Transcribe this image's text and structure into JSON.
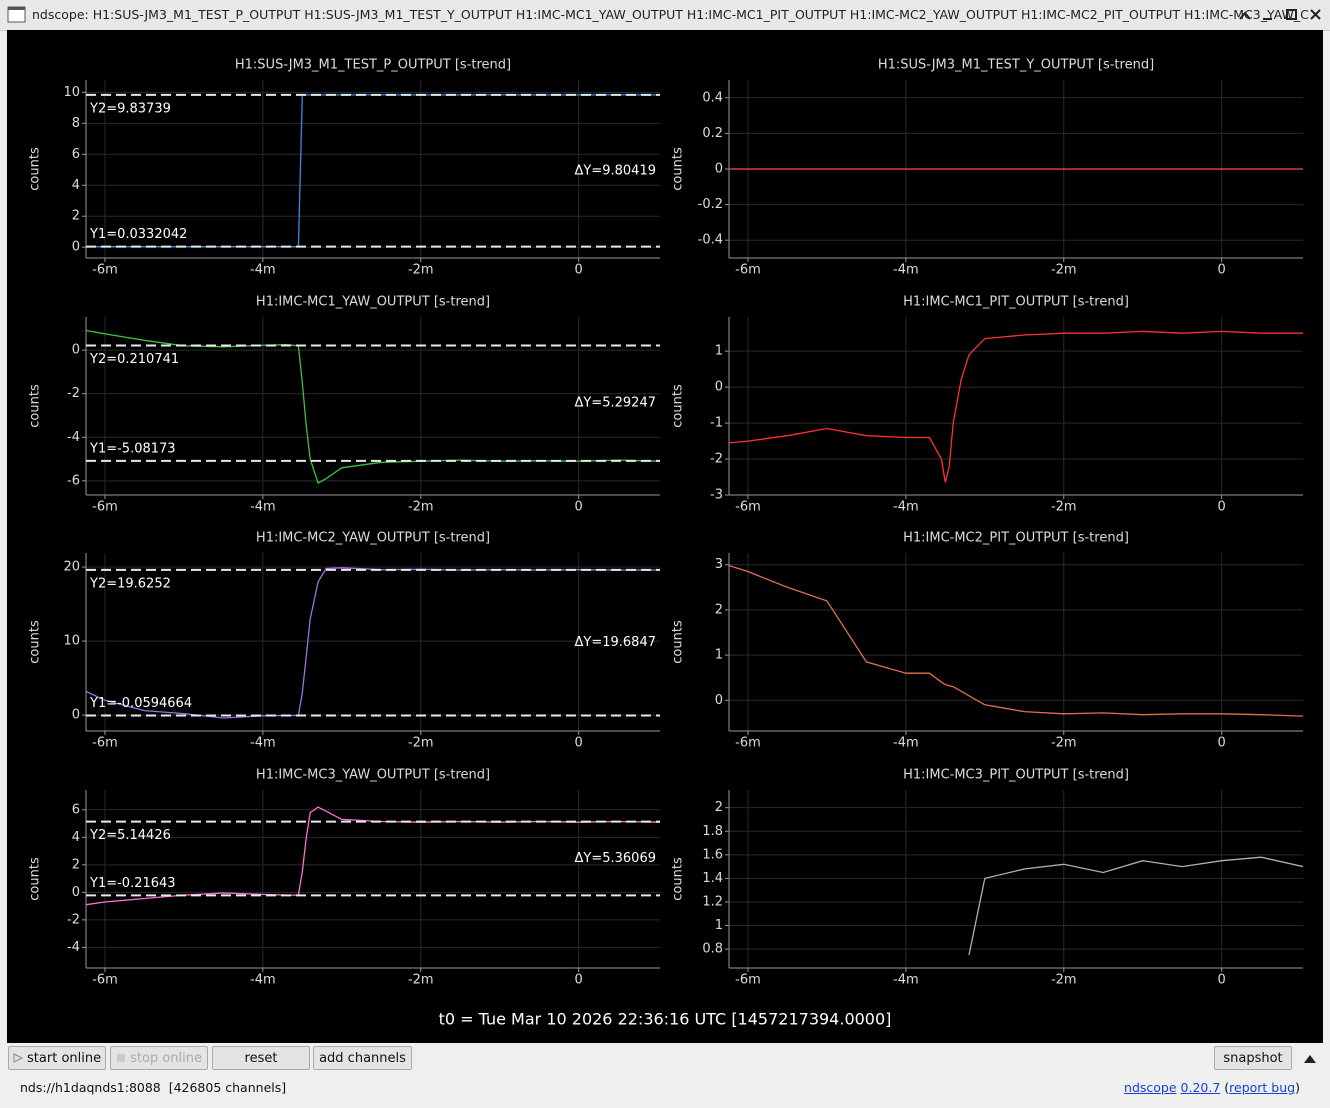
{
  "window": {
    "title": "ndscope: H1:SUS-JM3_M1_TEST_P_OUTPUT H1:SUS-JM3_M1_TEST_Y_OUTPUT H1:IMC-MC1_YAW_OUTPUT H1:IMC-MC1_PIT_OUTPUT H1:IMC-MC2_YAW_OUTPUT H1:IMC-MC2_PIT_OUTPUT H1:IMC-MC3_YAW_C"
  },
  "chart_data": [
    {
      "type": "line",
      "title": "H1:SUS-JM3_M1_TEST_P_OUTPUT [s-trend]",
      "ylabel": "counts",
      "grid": true,
      "xlim": [
        -6.24,
        1.03
      ],
      "xticks": [
        {
          "value": -6,
          "label": "-6m"
        },
        {
          "value": -4,
          "label": "-4m"
        },
        {
          "value": -2,
          "label": "-2m"
        },
        0
      ],
      "ylim": [
        -0.7,
        10.8
      ],
      "yticks": [
        0,
        2,
        4,
        6,
        8,
        10
      ],
      "x": [
        -6.24,
        -6,
        -5.5,
        -5,
        -4.5,
        -4,
        -3.7,
        -3.55,
        -3.5,
        -3.45,
        -3.4,
        -3.3,
        -3.2,
        -3,
        -2.5,
        -2,
        -1.5,
        -1,
        -0.5,
        0,
        0.5,
        1.03
      ],
      "series": [
        {
          "color": "#3a8dde",
          "values": [
            0.03,
            0.03,
            0.03,
            0.03,
            0.03,
            0.03,
            0.03,
            0.03,
            9.84,
            9.84,
            9.84,
            9.84,
            9.84,
            9.84,
            9.84,
            9.84,
            9.84,
            9.84,
            9.84,
            9.84,
            9.84,
            9.84
          ]
        }
      ],
      "cursors": {
        "y1": {
          "value": 0.0332042,
          "label": "Y1=0.0332042"
        },
        "y2": {
          "value": 9.83739,
          "label": "Y2=9.83739"
        },
        "dy": {
          "value": 9.80419,
          "label": "ΔY=9.80419"
        }
      }
    },
    {
      "type": "line",
      "title": "H1:SUS-JM3_M1_TEST_Y_OUTPUT [s-trend]",
      "ylabel": "counts",
      "grid": true,
      "xlim": [
        -6.24,
        1.03
      ],
      "xticks": [
        {
          "value": -6,
          "label": "-6m"
        },
        {
          "value": -4,
          "label": "-4m"
        },
        {
          "value": -2,
          "label": "-2m"
        },
        0
      ],
      "ylim": [
        -0.5,
        0.5
      ],
      "yticks": [
        -0.4,
        -0.2,
        0,
        0.2,
        0.4
      ],
      "x": [
        -6.24,
        -6,
        -5.5,
        -5,
        -4.5,
        -4,
        -3.7,
        -3.55,
        -3.5,
        -3.45,
        -3.4,
        -3.3,
        -3.2,
        -3,
        -2.5,
        -2,
        -1.5,
        -1,
        -0.5,
        0,
        0.5,
        1.03
      ],
      "series": [
        {
          "color": "#ff4a4a",
          "values": [
            0,
            0,
            0,
            0,
            0,
            0,
            0,
            0,
            0,
            0,
            0,
            0,
            0,
            0,
            0,
            0,
            0,
            0,
            0,
            0,
            0,
            0
          ]
        }
      ]
    },
    {
      "type": "line",
      "title": "H1:IMC-MC1_YAW_OUTPUT [s-trend]",
      "ylabel": "counts",
      "grid": true,
      "xlim": [
        -6.24,
        1.03
      ],
      "xticks": [
        {
          "value": -6,
          "label": "-6m"
        },
        {
          "value": -4,
          "label": "-4m"
        },
        {
          "value": -2,
          "label": "-2m"
        },
        0
      ],
      "ylim": [
        -6.65,
        1.52
      ],
      "yticks": [
        -6,
        -4,
        -2,
        0
      ],
      "x": [
        -6.24,
        -6,
        -5.5,
        -5,
        -4.5,
        -4,
        -3.7,
        -3.55,
        -3.5,
        -3.45,
        -3.4,
        -3.3,
        -3.2,
        -3,
        -2.5,
        -2,
        -1.5,
        -1,
        -0.5,
        0,
        0.5,
        1.03
      ],
      "series": [
        {
          "color": "#3fbf3f",
          "values": [
            0.9,
            0.75,
            0.45,
            0.2,
            0.15,
            0.22,
            0.25,
            0.2,
            -1.5,
            -3.5,
            -5,
            -6.1,
            -5.9,
            -5.4,
            -5.15,
            -5.1,
            -5.05,
            -5.1,
            -5.08,
            -5.1,
            -5.05,
            -5.1
          ]
        }
      ],
      "cursors": {
        "y1": {
          "value": -5.08173,
          "label": "Y1=-5.08173"
        },
        "y2": {
          "value": 0.210741,
          "label": "Y2=0.210741"
        },
        "dy": {
          "value": 5.29247,
          "label": "ΔY=5.29247"
        }
      }
    },
    {
      "type": "line",
      "title": "H1:IMC-MC1_PIT_OUTPUT [s-trend]",
      "ylabel": "counts",
      "grid": true,
      "xlim": [
        -6.24,
        1.03
      ],
      "xticks": [
        {
          "value": -6,
          "label": "-6m"
        },
        {
          "value": -4,
          "label": "-4m"
        },
        {
          "value": -2,
          "label": "-2m"
        },
        0
      ],
      "ylim": [
        -3,
        1.95
      ],
      "yticks": [
        -3,
        -2,
        -1,
        0,
        1
      ],
      "x": [
        -6.24,
        -6,
        -5.5,
        -5,
        -4.5,
        -4,
        -3.7,
        -3.55,
        -3.5,
        -3.45,
        -3.4,
        -3.3,
        -3.2,
        -3,
        -2.5,
        -2,
        -1.5,
        -1,
        -0.5,
        0,
        0.5,
        1.03
      ],
      "series": [
        {
          "color": "#ff3030",
          "values": [
            -1.55,
            -1.5,
            -1.35,
            -1.15,
            -1.35,
            -1.4,
            -1.4,
            -2.0,
            -2.65,
            -2.2,
            -1.0,
            0.2,
            0.9,
            1.35,
            1.45,
            1.5,
            1.5,
            1.55,
            1.5,
            1.55,
            1.5,
            1.5
          ]
        }
      ]
    },
    {
      "type": "line",
      "title": "H1:IMC-MC2_YAW_OUTPUT [s-trend]",
      "ylabel": "counts",
      "grid": true,
      "xlim": [
        -6.24,
        1.03
      ],
      "xticks": [
        {
          "value": -6,
          "label": "-6m"
        },
        {
          "value": -4,
          "label": "-4m"
        },
        {
          "value": -2,
          "label": "-2m"
        },
        0
      ],
      "ylim": [
        -2.15,
        21.9
      ],
      "yticks": [
        0,
        10,
        20
      ],
      "x": [
        -6.24,
        -6,
        -5.5,
        -5,
        -4.5,
        -4,
        -3.7,
        -3.55,
        -3.5,
        -3.45,
        -3.4,
        -3.3,
        -3.2,
        -3,
        -2.5,
        -2,
        -1.5,
        -1,
        -0.5,
        0,
        0.5,
        1.03
      ],
      "series": [
        {
          "color": "#a070e0",
          "values": [
            3.2,
            2.0,
            0.6,
            0.2,
            -0.4,
            -0.1,
            -0.05,
            -0.05,
            3,
            8,
            13,
            18,
            19.8,
            19.9,
            19.65,
            19.7,
            19.6,
            19.65,
            19.6,
            19.65,
            19.6,
            19.6
          ]
        }
      ],
      "cursors": {
        "y1": {
          "value": -0.0594664,
          "label": "Y1=-0.0594664"
        },
        "y2": {
          "value": 19.6252,
          "label": "Y2=19.6252"
        },
        "dy": {
          "value": 19.6847,
          "label": "ΔY=19.6847"
        }
      }
    },
    {
      "type": "line",
      "title": "H1:IMC-MC2_PIT_OUTPUT [s-trend]",
      "ylabel": "counts",
      "grid": true,
      "xlim": [
        -6.24,
        1.03
      ],
      "xticks": [
        {
          "value": -6,
          "label": "-6m"
        },
        {
          "value": -4,
          "label": "-4m"
        },
        {
          "value": -2,
          "label": "-2m"
        },
        0
      ],
      "ylim": [
        -0.68,
        3.26
      ],
      "yticks": [
        0,
        1,
        2,
        3
      ],
      "x": [
        -6.24,
        -6,
        -5.5,
        -5,
        -4.5,
        -4,
        -3.7,
        -3.55,
        -3.5,
        -3.45,
        -3.4,
        -3.3,
        -3.2,
        -3,
        -2.5,
        -2,
        -1.5,
        -1,
        -0.5,
        0,
        0.5,
        1.03
      ],
      "series": [
        {
          "color": "#e07050",
          "values": [
            2.98,
            2.85,
            2.5,
            2.2,
            0.85,
            0.6,
            0.6,
            0.4,
            0.35,
            0.32,
            0.3,
            0.2,
            0.1,
            -0.1,
            -0.25,
            -0.3,
            -0.28,
            -0.32,
            -0.3,
            -0.3,
            -0.32,
            -0.35
          ]
        }
      ]
    },
    {
      "type": "line",
      "title": "H1:IMC-MC3_YAW_OUTPUT [s-trend]",
      "ylabel": "counts",
      "grid": true,
      "xlim": [
        -6.24,
        1.03
      ],
      "xticks": [
        {
          "value": -6,
          "label": "-6m"
        },
        {
          "value": -4,
          "label": "-4m"
        },
        {
          "value": -2,
          "label": "-2m"
        },
        0
      ],
      "ylim": [
        -5.5,
        7.44
      ],
      "yticks": [
        -4,
        -2,
        0,
        2,
        4,
        6
      ],
      "x": [
        -6.24,
        -6,
        -5.5,
        -5,
        -4.5,
        -4,
        -3.7,
        -3.55,
        -3.5,
        -3.45,
        -3.4,
        -3.3,
        -3.2,
        -3,
        -2.5,
        -2,
        -1.5,
        -1,
        -0.5,
        0,
        0.5,
        1.03
      ],
      "series": [
        {
          "color": "#ff70d0",
          "values": [
            -0.9,
            -0.7,
            -0.45,
            -0.2,
            -0.05,
            -0.15,
            -0.2,
            -0.2,
            1.5,
            4,
            5.8,
            6.2,
            5.9,
            5.3,
            5.15,
            5.1,
            5.15,
            5.1,
            5.15,
            5.1,
            5.15,
            5.1
          ]
        }
      ],
      "cursors": {
        "y1": {
          "value": -0.21643,
          "label": "Y1=-0.21643"
        },
        "y2": {
          "value": 5.14426,
          "label": "Y2=5.14426"
        },
        "dy": {
          "value": 5.36069,
          "label": "ΔY=5.36069"
        }
      }
    },
    {
      "type": "line",
      "title": "H1:IMC-MC3_PIT_OUTPUT [s-trend]",
      "ylabel": "counts",
      "grid": true,
      "xlim": [
        -6.24,
        1.03
      ],
      "xticks": [
        {
          "value": -6,
          "label": "-6m"
        },
        {
          "value": -4,
          "label": "-4m"
        },
        {
          "value": -2,
          "label": "-2m"
        },
        0
      ],
      "ylim": [
        0.64,
        2.15
      ],
      "yticks": [
        0.8,
        1,
        1.2,
        1.4,
        1.6,
        1.8,
        2
      ],
      "x": [
        -6.24,
        -6,
        -5.5,
        -5,
        -4.5,
        -4,
        -3.7,
        -3.55,
        -3.5,
        -3.45,
        -3.4,
        -3.3,
        -3.2,
        -3,
        -2.5,
        -2,
        -1.5,
        -1,
        -0.5,
        0,
        0.5,
        1.03
      ],
      "series": [
        {
          "color": "#b0b0b0",
          "values": [
            null,
            null,
            null,
            null,
            null,
            null,
            null,
            null,
            null,
            null,
            null,
            null,
            0.75,
            1.4,
            1.48,
            1.52,
            1.45,
            1.55,
            1.5,
            1.55,
            1.58,
            1.5
          ]
        }
      ]
    }
  ],
  "footer": {
    "t0": "t0 = Tue Mar 10 2026 22:36:16 UTC [1457217394.0000]"
  },
  "buttons": [
    "start online",
    "stop online",
    "reset",
    "add channels",
    "snapshot"
  ],
  "status": {
    "server": "nds://h1daqnds1:8088  [426805 channels]",
    "app": "ndscope",
    "version": "0.20.7",
    "open": "(",
    "report": "report bug",
    "close": ")"
  }
}
